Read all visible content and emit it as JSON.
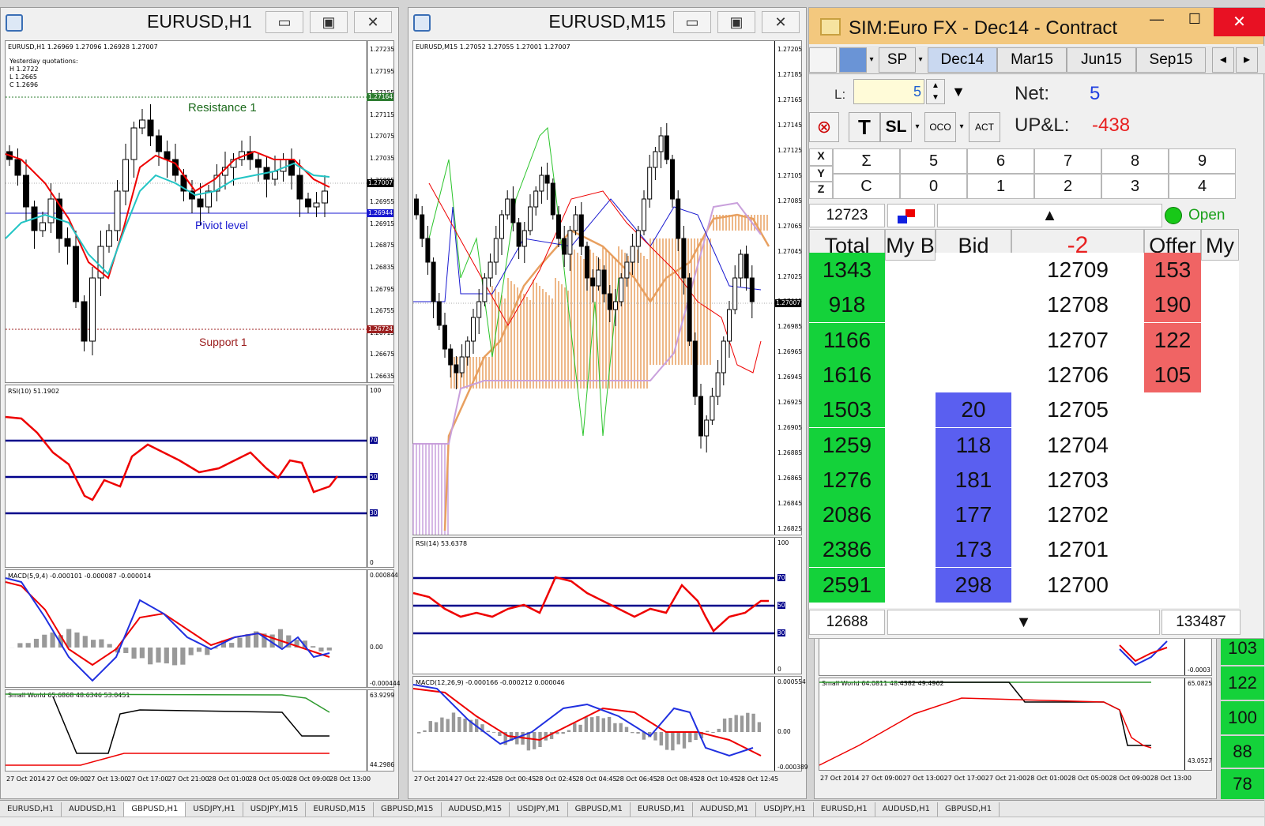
{
  "win1": {
    "title": "EURUSD,H1",
    "min": "▭",
    "max": "▣",
    "close": "✕",
    "header": "EURUSD,H1  1.26969 1.27096 1.26928 1.27007",
    "quote_title": "Yesterday quotations:",
    "quote_h": "H 1.2722",
    "quote_l": "L 1.2665",
    "quote_c": "C 1.2696",
    "resistance": "Resistance 1",
    "pivot": "Piviot level",
    "support": "Support 1",
    "price_axis": [
      "1.27235",
      "1.27195",
      "1.27155",
      "1.27115",
      "1.27075",
      "1.27035",
      "1.26995",
      "1.26955",
      "1.26915",
      "1.26875",
      "1.26835",
      "1.26795",
      "1.26755",
      "1.26715",
      "1.26675",
      "1.26635"
    ],
    "tag_res": "1.27164",
    "tag_cur": "1.27007",
    "tag_piv": "1.26944",
    "tag_sup": "1.26724",
    "rsi_label": "RSI(10) 51.1902",
    "rsi_axis": [
      "100",
      "70",
      "50",
      "30",
      "0"
    ],
    "macd_label": "MACD(5,9,4) -0.000101 -0.000087 -0.000014",
    "macd_axis": [
      "0.000844",
      "0.00",
      "-0.000444"
    ],
    "sw_label": "Small World 65.6868 48.6346 53.0451",
    "sw_axis": [
      "63.9299",
      "44.2986"
    ],
    "x_axis": [
      "27 Oct 2014",
      "27 Oct 09:00",
      "27 Oct 13:00",
      "27 Oct 17:00",
      "27 Oct 21:00",
      "28 Oct 01:00",
      "28 Oct 05:00",
      "28 Oct 09:00",
      "28 Oct 13:00"
    ]
  },
  "win2": {
    "title": "EURUSD,M15",
    "min": "▭",
    "max": "▣",
    "close": "✕",
    "header": "EURUSD,M15  1.27052 1.27055 1.27001 1.27007",
    "price_axis": [
      "1.27205",
      "1.27185",
      "1.27165",
      "1.27145",
      "1.27125",
      "1.27105",
      "1.27085",
      "1.27065",
      "1.27045",
      "1.27025",
      "1.27005",
      "1.26985",
      "1.26965",
      "1.26945",
      "1.26925",
      "1.26905",
      "1.26885",
      "1.26865",
      "1.26845",
      "1.26825"
    ],
    "tag_cur": "1.27007",
    "rsi_label": "RSI(14) 53.6378",
    "rsi_axis": [
      "100",
      "70",
      "50",
      "30",
      "0"
    ],
    "macd_label": "MACD(12,26,9) -0.000166 -0.000212 0.000046",
    "macd_axis": [
      "0.000554",
      "0.00",
      "-0.000389"
    ],
    "x_axis": [
      "27 Oct 2014",
      "27 Oct 22:45",
      "28 Oct 00:45",
      "28 Oct 02:45",
      "28 Oct 04:45",
      "28 Oct 06:45",
      "28 Oct 08:45",
      "28 Oct 10:45",
      "28 Oct 12:45"
    ]
  },
  "win3": {
    "macd_axis": [
      "-0.0003"
    ],
    "sw_label": "Small World 64.0811 48.4382 49.4962",
    "sw_axis": [
      "65.0825",
      "43.0527"
    ],
    "x_axis": [
      "27 Oct 2014",
      "27 Oct 09:00",
      "27 Oct 13:00",
      "27 Oct 17:00",
      "27 Oct 21:00",
      "28 Oct 01:00",
      "28 Oct 05:00",
      "28 Oct 09:00",
      "28 Oct 13:00"
    ],
    "right_values": [
      "103",
      "122",
      "100",
      "88",
      "78"
    ]
  },
  "dom": {
    "title": "SIM:Euro FX - Dec14 - Contract",
    "min": "—",
    "max": "☐",
    "close": "✕",
    "tabs": [
      "SP",
      "Dec14",
      "Mar15",
      "Jun15",
      "Sep15"
    ],
    "l_label": "L:",
    "l_value": "5",
    "net_label": "Net:",
    "net_value": "5",
    "upl_label": "UP&L:",
    "upl_value": "-438",
    "t_btn": "T",
    "sl_btn": "SL",
    "oco_btn": "OCO",
    "act_btn": "ACT",
    "xyz": [
      "X",
      "Y",
      "Z"
    ],
    "row1": [
      "Σ",
      "5",
      "6",
      "7",
      "8",
      "9"
    ],
    "row2": [
      "C",
      "0",
      "1",
      "2",
      "3",
      "4"
    ],
    "top_price": "12723",
    "open_label": "Open",
    "col_headers": [
      "Total",
      "My B",
      "Bid",
      "-2",
      "Offer",
      "My"
    ],
    "rows": [
      {
        "total": "1343",
        "bid": "",
        "price": "12709",
        "offer": "153"
      },
      {
        "total": "918",
        "bid": "",
        "price": "12708",
        "offer": "190"
      },
      {
        "total": "1166",
        "bid": "",
        "price": "12707",
        "offer": "122"
      },
      {
        "total": "1616",
        "bid": "",
        "price": "12706",
        "offer": "105"
      },
      {
        "total": "1503",
        "bid": "20",
        "price": "12705",
        "offer": ""
      },
      {
        "total": "1259",
        "bid": "118",
        "price": "12704",
        "offer": ""
      },
      {
        "total": "1276",
        "bid": "181",
        "price": "12703",
        "offer": ""
      },
      {
        "total": "2086",
        "bid": "177",
        "price": "12702",
        "offer": ""
      },
      {
        "total": "2386",
        "bid": "173",
        "price": "12701",
        "offer": ""
      },
      {
        "total": "2591",
        "bid": "298",
        "price": "12700",
        "offer": ""
      }
    ],
    "bottom_price": "12688",
    "bottom_total": "133487"
  },
  "bottom_tabs": [
    "EURUSD,H1",
    "AUDUSD,H1",
    "GBPUSD,H1",
    "USDJPY,H1",
    "USDJPY,M15",
    "EURUSD,M15",
    "GBPUSD,M15",
    "AUDUSD,M15",
    "USDJPY,M1",
    "GBPUSD,M1",
    "EURUSD,M1",
    "AUDUSD,M1",
    "USDJPY,H1",
    "EURUSD,H1",
    "AUDUSD,H1",
    "GBPUSD,H1"
  ],
  "active_tab": 2
}
